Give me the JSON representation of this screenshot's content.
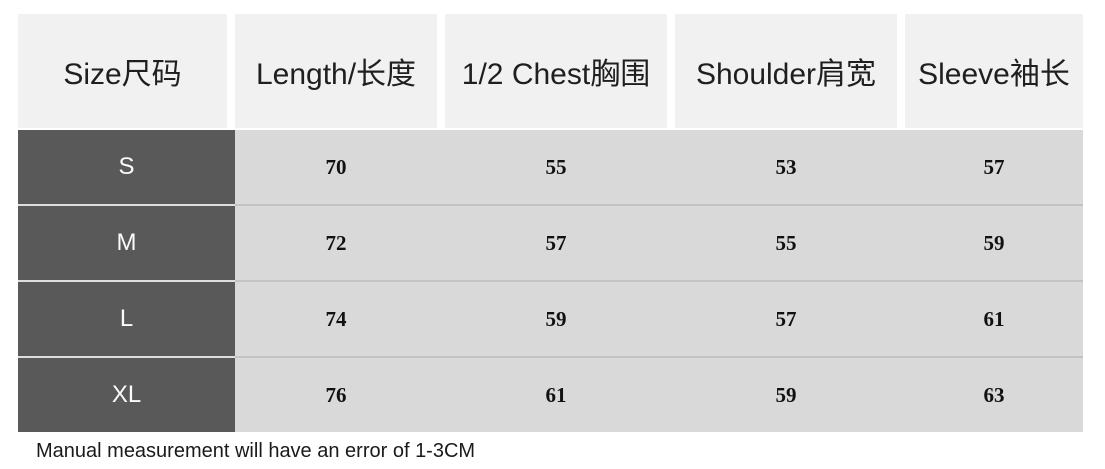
{
  "size_chart": {
    "headers": [
      "Size尺码",
      "Length/长度",
      "1/2 Chest胸围",
      "Shoulder肩宽",
      "Sleeve袖长"
    ],
    "rows": [
      {
        "size": "S",
        "length": "70",
        "half_chest": "55",
        "shoulder": "53",
        "sleeve": "57"
      },
      {
        "size": "M",
        "length": "72",
        "half_chest": "57",
        "shoulder": "55",
        "sleeve": "59"
      },
      {
        "size": "L",
        "length": "74",
        "half_chest": "59",
        "shoulder": "57",
        "sleeve": "61"
      },
      {
        "size": "XL",
        "length": "76",
        "half_chest": "61",
        "shoulder": "59",
        "sleeve": "63"
      }
    ],
    "note": "Manual measurement will have an error of 1-3CM"
  },
  "colors": {
    "page_bg": "#ffffff",
    "header_bg": "#f1f1f1",
    "header_text": "#1f1f1f",
    "size_column_bg": "#595959",
    "size_column_text": "#fbfbfb",
    "data_bg": "#d9d9d9",
    "data_text": "#111111",
    "separator_on_dark": "#dedede",
    "separator_on_data": "#c3c3c3"
  },
  "chart_data": {
    "type": "table",
    "columns": [
      "Size尺码",
      "Length/长度",
      "1/2 Chest胸围",
      "Shoulder肩宽",
      "Sleeve袖长"
    ],
    "rows": [
      [
        "S",
        70,
        55,
        53,
        57
      ],
      [
        "M",
        72,
        57,
        55,
        59
      ],
      [
        "L",
        74,
        59,
        57,
        61
      ],
      [
        "XL",
        76,
        61,
        59,
        63
      ]
    ],
    "footnote": "Manual measurement will have an error of 1-3CM"
  }
}
